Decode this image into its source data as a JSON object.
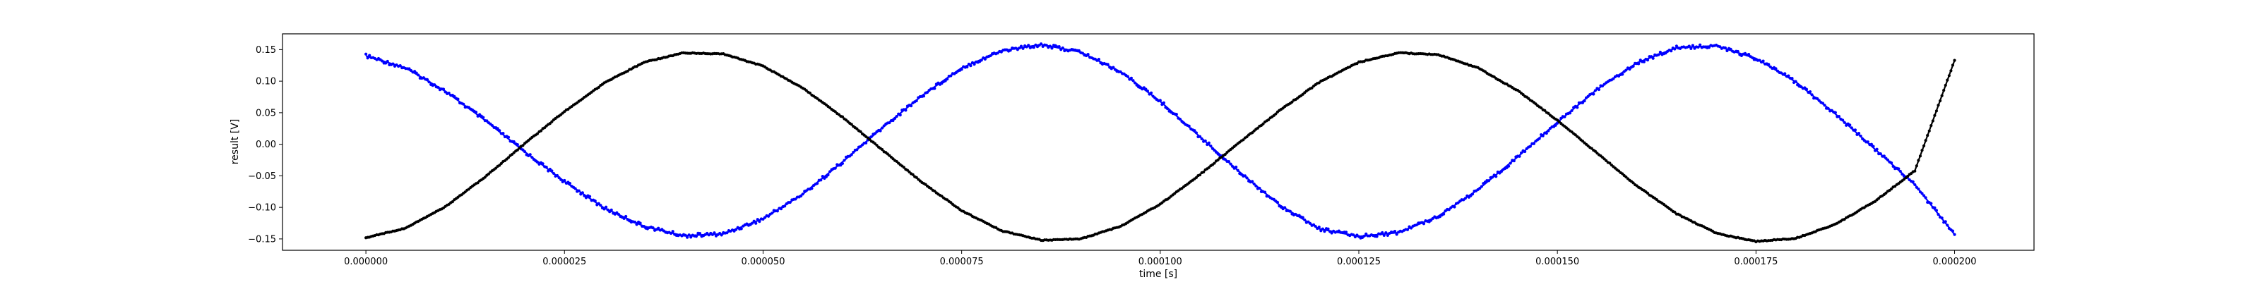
{
  "chart_data": {
    "type": "scatter",
    "title": "",
    "xlabel": "time [s]",
    "ylabel": "result [V]",
    "xlim": [
      -1.05e-05,
      0.00021
    ],
    "ylim": [
      -0.168,
      0.175
    ],
    "x_ticks": [
      0.0,
      2.5e-05,
      5e-05,
      7.5e-05,
      0.0001,
      0.000125,
      0.00015,
      0.000175,
      0.0002
    ],
    "x_tick_labels": [
      "0.000000",
      "0.000025",
      "0.000050",
      "0.000075",
      "0.000100",
      "0.000125",
      "0.000150",
      "0.000175",
      "0.000200"
    ],
    "y_ticks": [
      -0.15,
      -0.1,
      -0.05,
      0.0,
      0.05,
      0.1,
      0.15
    ],
    "y_tick_labels": [
      "−0.15",
      "−0.10",
      "−0.05",
      "0.00",
      "0.05",
      "0.10",
      "0.15"
    ],
    "grid": false,
    "legend": "none",
    "series": [
      {
        "color": "#0000ff",
        "marker": "dot",
        "x": [
          0.0,
          5e-06,
          1e-05,
          1.5e-05,
          2e-05,
          2.5e-05,
          3e-05,
          3.5e-05,
          4e-05,
          4.5e-05,
          5e-05,
          5.5e-05,
          6e-05,
          6.5e-05,
          7e-05,
          7.5e-05,
          8e-05,
          8.5e-05,
          9e-05,
          9.5e-05,
          0.0001,
          0.000105,
          0.00011,
          0.000115,
          0.00012,
          0.000125,
          0.00013,
          0.000135,
          0.00014,
          0.000145,
          0.00015,
          0.000155,
          0.00016,
          0.000165,
          0.00017,
          0.000175,
          0.00018,
          0.000185,
          0.00019,
          0.000195,
          0.0002
        ],
        "y": [
          0.14,
          0.121,
          0.084,
          0.038,
          -0.012,
          -0.059,
          -0.101,
          -0.13,
          -0.145,
          -0.142,
          -0.118,
          -0.079,
          -0.028,
          0.026,
          0.077,
          0.121,
          0.148,
          0.158,
          0.146,
          0.115,
          0.068,
          0.012,
          -0.044,
          -0.096,
          -0.134,
          -0.146,
          -0.14,
          -0.114,
          -0.072,
          -0.02,
          0.035,
          0.087,
          0.129,
          0.153,
          0.156,
          0.136,
          0.099,
          0.048,
          -0.008,
          -0.064,
          -0.143
        ]
      },
      {
        "color": "#000000",
        "marker": "dot",
        "x": [
          0.0,
          5e-06,
          1e-05,
          1.5e-05,
          2e-05,
          2.5e-05,
          3e-05,
          3.5e-05,
          4e-05,
          4.5e-05,
          5e-05,
          5.5e-05,
          6e-05,
          6.5e-05,
          7e-05,
          7.5e-05,
          8e-05,
          8.5e-05,
          9e-05,
          9.5e-05,
          0.0001,
          0.000105,
          0.00011,
          0.000115,
          0.00012,
          0.000125,
          0.00013,
          0.000135,
          0.00014,
          0.000145,
          0.00015,
          0.000155,
          0.00016,
          0.000165,
          0.00017,
          0.000175,
          0.00018,
          0.000185,
          0.00019,
          0.000195,
          0.0002
        ],
        "y": [
          -0.148,
          -0.133,
          -0.099,
          -0.052,
          0.001,
          0.052,
          0.097,
          0.13,
          0.145,
          0.143,
          0.124,
          0.089,
          0.043,
          -0.009,
          -0.06,
          -0.105,
          -0.137,
          -0.152,
          -0.15,
          -0.13,
          -0.095,
          -0.048,
          0.003,
          0.053,
          0.098,
          0.13,
          0.145,
          0.142,
          0.121,
          0.085,
          0.038,
          -0.014,
          -0.066,
          -0.11,
          -0.141,
          -0.154,
          -0.149,
          -0.127,
          -0.09,
          -0.042,
          0.133
        ]
      }
    ]
  }
}
